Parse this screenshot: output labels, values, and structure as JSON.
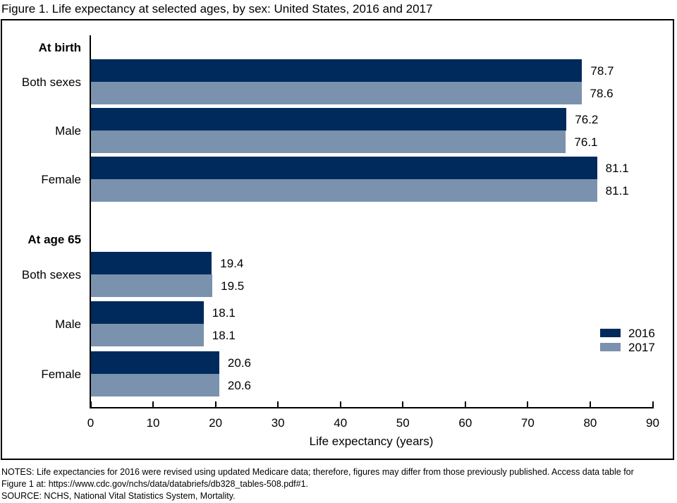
{
  "title": "Figure 1. Life expectancy at selected ages, by sex: United States, 2016 and 2017",
  "chart_data": {
    "type": "bar",
    "orientation": "horizontal",
    "title": "Figure 1. Life expectancy at selected ages, by sex: United States, 2016 and 2017",
    "xlabel": "Life expectancy (years)",
    "xlim": [
      0,
      90
    ],
    "xticks": [
      0,
      10,
      20,
      30,
      40,
      50,
      60,
      70,
      80,
      90
    ],
    "grid": false,
    "legend_position": "right",
    "legend": [
      "2016",
      "2017"
    ],
    "series_colors": {
      "2016": "#002a5c",
      "2017": "#7a92ad"
    },
    "groups": [
      {
        "header": "At birth",
        "categories": [
          "Both sexes",
          "Male",
          "Female"
        ],
        "series": [
          {
            "name": "2016",
            "values": [
              78.7,
              76.2,
              81.1
            ]
          },
          {
            "name": "2017",
            "values": [
              78.6,
              76.1,
              81.1
            ]
          }
        ]
      },
      {
        "header": "At age 65",
        "categories": [
          "Both sexes",
          "Male",
          "Female"
        ],
        "series": [
          {
            "name": "2016",
            "values": [
              19.4,
              18.1,
              20.6
            ]
          },
          {
            "name": "2017",
            "values": [
              19.5,
              18.1,
              20.6
            ]
          }
        ]
      }
    ]
  },
  "notes": [
    "NOTES: Life expectancies for 2016 were revised using updated Medicare data; therefore, figures may differ from those previously published. Access data table for",
    "Figure 1 at: https://www.cdc.gov/nchs/data/databriefs/db328_tables-508.pdf#1.",
    "SOURCE: NCHS, National Vital Statistics System, Mortality."
  ]
}
